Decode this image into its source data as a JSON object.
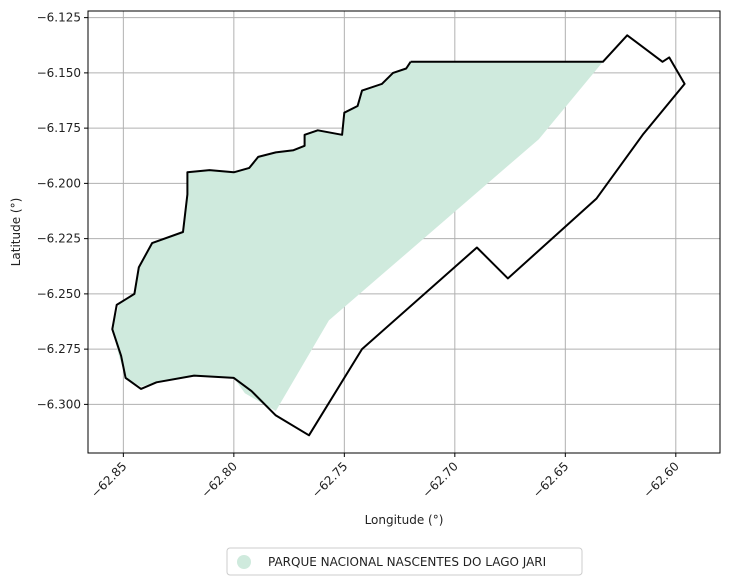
{
  "map": {
    "xlabel": "Longitude (°)",
    "ylabel": "Latitude (°)",
    "xlim": [
      -62.866,
      -62.58
    ],
    "ylim": [
      -6.322,
      -6.122
    ],
    "grid": true,
    "x_ticks": [
      {
        "value": -62.85,
        "label": "−62.85"
      },
      {
        "value": -62.8,
        "label": "−62.80"
      },
      {
        "value": -62.75,
        "label": "−62.75"
      },
      {
        "value": -62.7,
        "label": "−62.70"
      },
      {
        "value": -62.65,
        "label": "−62.65"
      },
      {
        "value": -62.6,
        "label": "−62.60"
      }
    ],
    "y_ticks": [
      {
        "value": -6.125,
        "label": "−6.125"
      },
      {
        "value": -6.15,
        "label": "−6.150"
      },
      {
        "value": -6.175,
        "label": "−6.175"
      },
      {
        "value": -6.2,
        "label": "−6.200"
      },
      {
        "value": -6.225,
        "label": "−6.225"
      },
      {
        "value": -6.25,
        "label": "−6.250"
      },
      {
        "value": -6.275,
        "label": "−6.275"
      },
      {
        "value": -6.3,
        "label": "−6.300"
      }
    ]
  },
  "legend": {
    "entries": [
      {
        "label": "PARQUE NACIONAL NASCENTES DO LAGO JARI",
        "color": "#cfeadd"
      }
    ]
  },
  "colors": {
    "fill": "#cfeadd",
    "boundary": "#000000",
    "grid": "#b0b0b0"
  },
  "chart_data": {
    "type": "map",
    "xlabel": "Longitude (°)",
    "ylabel": "Latitude (°)",
    "xlim": [
      -62.866,
      -62.58
    ],
    "ylim": [
      -6.322,
      -6.122
    ],
    "legend": [
      "PARQUE NACIONAL NASCENTES DO LAGO JARI"
    ],
    "filled_area": [
      [
        -62.72,
        -6.145
      ],
      [
        -62.633,
        -6.145
      ],
      [
        -62.662,
        -6.18
      ],
      [
        -62.757,
        -6.262
      ],
      [
        -62.781,
        -6.303
      ],
      [
        -62.795,
        -6.295
      ],
      [
        -62.8,
        -6.288
      ],
      [
        -62.818,
        -6.287
      ],
      [
        -62.835,
        -6.29
      ],
      [
        -62.842,
        -6.292
      ],
      [
        -62.849,
        -6.288
      ],
      [
        -62.852,
        -6.278
      ],
      [
        -62.855,
        -6.266
      ],
      [
        -62.852,
        -6.255
      ],
      [
        -62.845,
        -6.25
      ],
      [
        -62.843,
        -6.238
      ],
      [
        -62.837,
        -6.227
      ],
      [
        -62.823,
        -6.222
      ],
      [
        -62.821,
        -6.205
      ],
      [
        -62.821,
        -6.195
      ],
      [
        -62.811,
        -6.194
      ],
      [
        -62.8,
        -6.195
      ],
      [
        -62.793,
        -6.193
      ],
      [
        -62.789,
        -6.188
      ],
      [
        -62.781,
        -6.186
      ],
      [
        -62.773,
        -6.185
      ],
      [
        -62.768,
        -6.183
      ],
      [
        -62.768,
        -6.178
      ],
      [
        -62.762,
        -6.176
      ],
      [
        -62.751,
        -6.178
      ],
      [
        -62.75,
        -6.168
      ],
      [
        -62.744,
        -6.165
      ],
      [
        -62.742,
        -6.158
      ],
      [
        -62.733,
        -6.155
      ],
      [
        -62.728,
        -6.15
      ],
      [
        -62.722,
        -6.148
      ]
    ],
    "boundary": [
      [
        -62.72,
        -6.145
      ],
      [
        -62.633,
        -6.145
      ],
      [
        -62.622,
        -6.133
      ],
      [
        -62.606,
        -6.145
      ],
      [
        -62.603,
        -6.143
      ],
      [
        -62.596,
        -6.155
      ],
      [
        -62.615,
        -6.178
      ],
      [
        -62.636,
        -6.207
      ],
      [
        -62.676,
        -6.243
      ],
      [
        -62.69,
        -6.229
      ],
      [
        -62.742,
        -6.275
      ],
      [
        -62.766,
        -6.314
      ],
      [
        -62.781,
        -6.305
      ],
      [
        -62.792,
        -6.294
      ],
      [
        -62.8,
        -6.288
      ],
      [
        -62.818,
        -6.287
      ],
      [
        -62.835,
        -6.29
      ],
      [
        -62.842,
        -6.293
      ],
      [
        -62.849,
        -6.288
      ],
      [
        -62.851,
        -6.278
      ],
      [
        -62.855,
        -6.266
      ],
      [
        -62.853,
        -6.255
      ],
      [
        -62.845,
        -6.25
      ],
      [
        -62.843,
        -6.238
      ],
      [
        -62.837,
        -6.227
      ],
      [
        -62.823,
        -6.222
      ],
      [
        -62.821,
        -6.205
      ],
      [
        -62.821,
        -6.195
      ],
      [
        -62.811,
        -6.194
      ],
      [
        -62.8,
        -6.195
      ],
      [
        -62.793,
        -6.193
      ],
      [
        -62.789,
        -6.188
      ],
      [
        -62.781,
        -6.186
      ],
      [
        -62.773,
        -6.185
      ],
      [
        -62.768,
        -6.183
      ],
      [
        -62.768,
        -6.178
      ],
      [
        -62.762,
        -6.176
      ],
      [
        -62.751,
        -6.178
      ],
      [
        -62.75,
        -6.168
      ],
      [
        -62.744,
        -6.165
      ],
      [
        -62.742,
        -6.158
      ],
      [
        -62.733,
        -6.155
      ],
      [
        -62.728,
        -6.15
      ],
      [
        -62.722,
        -6.148
      ],
      [
        -62.72,
        -6.145
      ]
    ]
  }
}
